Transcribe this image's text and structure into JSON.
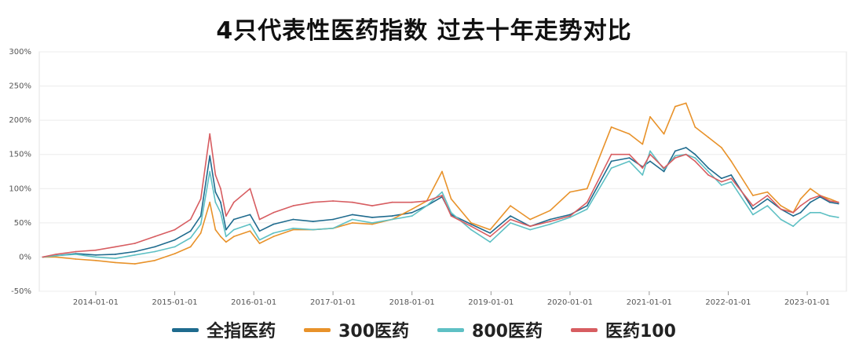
{
  "title": "4只代表性医药指数 过去十年走势对比",
  "chart_data": {
    "type": "line",
    "title": "4只代表性医药指数 过去十年走势对比",
    "xlabel": "",
    "ylabel": "",
    "ylim": [
      -50,
      300
    ],
    "y_ticks": [
      300,
      250,
      200,
      150,
      100,
      50,
      0,
      -50
    ],
    "y_tick_labels": [
      "300%",
      "250%",
      "200%",
      "150%",
      "100%",
      "50%",
      "0%",
      "-50%"
    ],
    "x_ticks": [
      "2014-01-01",
      "2015-01-01",
      "2016-01-01",
      "2017-01-01",
      "2018-01-01",
      "2019-01-01",
      "2020-01-01",
      "2021-01-01",
      "2022-01-01",
      "2023-01-01"
    ],
    "grid": "horizontal",
    "legend_position": "bottom",
    "x": [
      "2013-05-01",
      "2013-07-01",
      "2013-10-01",
      "2014-01-01",
      "2014-04-01",
      "2014-07-01",
      "2014-10-01",
      "2015-01-01",
      "2015-03-15",
      "2015-05-01",
      "2015-06-12",
      "2015-07-08",
      "2015-08-01",
      "2015-08-26",
      "2015-10-01",
      "2015-12-15",
      "2016-01-28",
      "2016-04-01",
      "2016-07-01",
      "2016-10-01",
      "2017-01-01",
      "2017-04-01",
      "2017-07-01",
      "2017-10-01",
      "2018-01-01",
      "2018-03-10",
      "2018-05-20",
      "2018-07-01",
      "2018-10-01",
      "2018-12-28",
      "2019-04-01",
      "2019-07-01",
      "2019-10-01",
      "2020-01-01",
      "2020-03-20",
      "2020-07-10",
      "2020-10-01",
      "2020-12-01",
      "2021-01-05",
      "2021-03-10",
      "2021-05-01",
      "2021-06-20",
      "2021-08-01",
      "2021-10-01",
      "2021-12-01",
      "2022-01-15",
      "2022-04-25",
      "2022-07-01",
      "2022-09-01",
      "2022-10-28",
      "2022-12-01",
      "2023-01-15",
      "2023-03-01",
      "2023-04-15",
      "2023-05-25"
    ],
    "series": [
      {
        "name": "全指医药",
        "color": "#1f6b8e",
        "values": [
          0,
          2,
          5,
          3,
          4,
          8,
          15,
          25,
          38,
          60,
          148,
          95,
          80,
          40,
          55,
          62,
          38,
          48,
          55,
          52,
          55,
          62,
          58,
          60,
          65,
          75,
          88,
          62,
          48,
          35,
          60,
          45,
          55,
          62,
          75,
          140,
          145,
          132,
          140,
          125,
          155,
          160,
          150,
          130,
          115,
          120,
          70,
          85,
          70,
          60,
          65,
          80,
          88,
          80,
          78
        ]
      },
      {
        "name": "300医药",
        "color": "#e8922a",
        "values": [
          0,
          0,
          -3,
          -5,
          -8,
          -10,
          -5,
          5,
          15,
          35,
          80,
          40,
          30,
          22,
          30,
          38,
          20,
          30,
          40,
          40,
          42,
          50,
          48,
          55,
          70,
          82,
          125,
          85,
          50,
          40,
          75,
          55,
          68,
          95,
          100,
          190,
          180,
          165,
          205,
          180,
          220,
          225,
          190,
          175,
          160,
          140,
          90,
          95,
          75,
          65,
          85,
          100,
          90,
          85,
          80
        ]
      },
      {
        "name": "800医药",
        "color": "#5ec0c4",
        "values": [
          0,
          2,
          4,
          0,
          -2,
          3,
          8,
          15,
          28,
          48,
          125,
          80,
          65,
          30,
          40,
          48,
          25,
          35,
          42,
          40,
          42,
          55,
          50,
          55,
          60,
          75,
          95,
          65,
          40,
          22,
          50,
          40,
          48,
          58,
          70,
          130,
          140,
          120,
          155,
          128,
          148,
          150,
          145,
          125,
          105,
          110,
          62,
          75,
          55,
          45,
          55,
          65,
          65,
          60,
          58
        ]
      },
      {
        "name": "医药100",
        "color": "#d75d61",
        "values": [
          0,
          4,
          8,
          10,
          15,
          20,
          30,
          40,
          55,
          85,
          180,
          120,
          100,
          60,
          80,
          100,
          55,
          65,
          75,
          80,
          82,
          80,
          75,
          80,
          80,
          82,
          90,
          60,
          45,
          30,
          55,
          45,
          52,
          60,
          80,
          150,
          150,
          130,
          150,
          130,
          145,
          150,
          140,
          120,
          110,
          115,
          75,
          90,
          70,
          65,
          75,
          85,
          90,
          82,
          80
        ]
      }
    ]
  }
}
